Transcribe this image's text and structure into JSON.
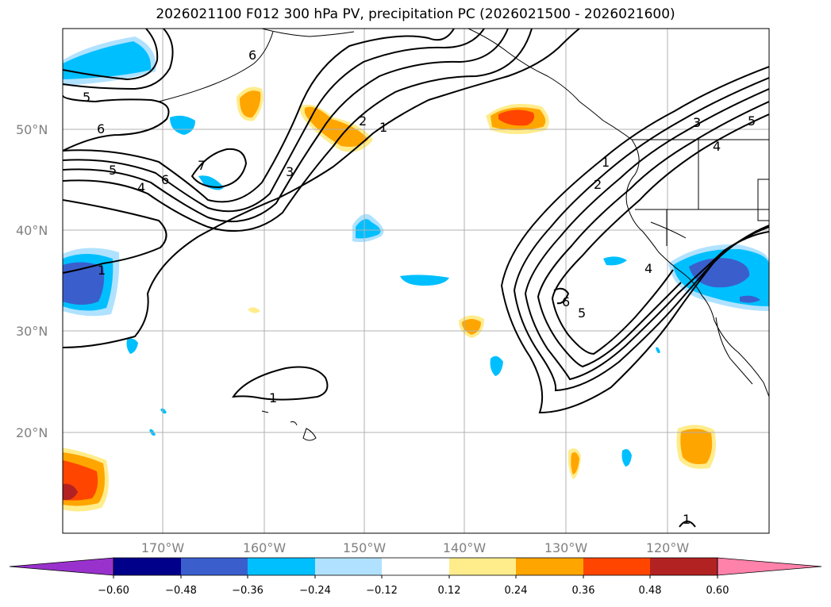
{
  "title": "2026021100 F012 300 hPa PV, precipitation PC (2026021500 - 2026021600)",
  "axes": {
    "lon_labels": [
      "170°W",
      "160°W",
      "150°W",
      "140°W",
      "130°W",
      "120°W"
    ],
    "lat_labels": [
      "50°N",
      "40°N",
      "30°N",
      "20°N"
    ]
  },
  "contour_labels": [
    "5",
    "6",
    "6",
    "5",
    "4",
    "6",
    "7",
    "1",
    "3",
    "2",
    "1",
    "1",
    "2",
    "3",
    "4",
    "5",
    "6",
    "3",
    "5",
    "4",
    "1",
    "1"
  ],
  "colorbar": {
    "ticks": [
      "−0.60",
      "−0.48",
      "−0.36",
      "−0.24",
      "−0.12",
      "0.12",
      "0.24",
      "0.36",
      "0.48",
      "0.60"
    ],
    "colors": [
      "#9932cc",
      "#00008b",
      "#3a5fcd",
      "#00bfff",
      "#b0e2ff",
      "#ffffff",
      "#ffec8b",
      "#ffa500",
      "#ff4500",
      "#b22222",
      "#ff82ab"
    ]
  }
}
